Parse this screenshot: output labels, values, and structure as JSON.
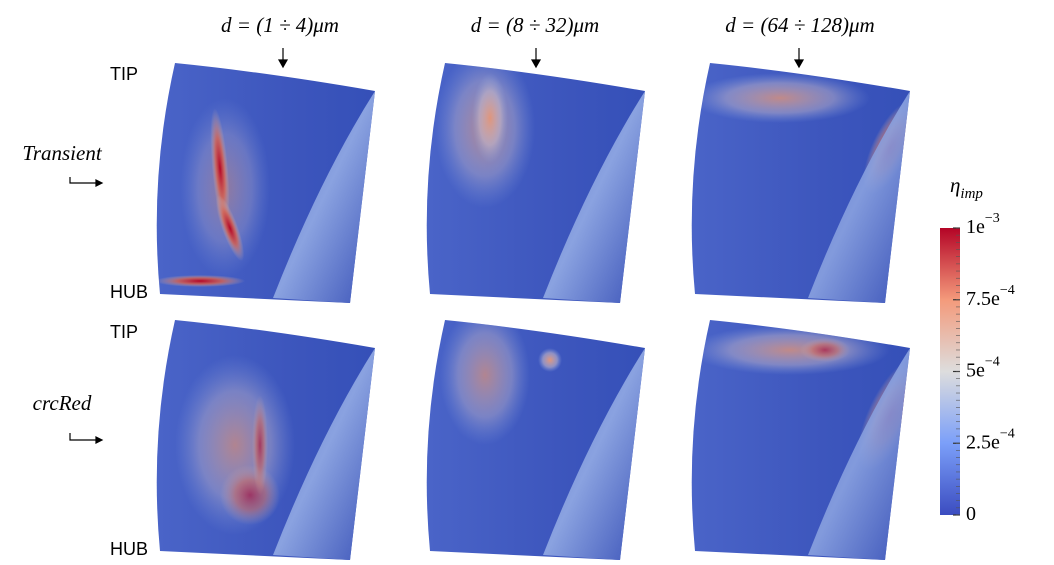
{
  "columns": [
    {
      "label": "d = (1 ÷ 4)μm"
    },
    {
      "label": "d = (8 ÷ 32)μm"
    },
    {
      "label": "d = (64 ÷ 128)μm"
    }
  ],
  "rows": [
    {
      "label": "Transient",
      "tip": "TIP",
      "hub": "HUB"
    },
    {
      "label": "crcRed",
      "tip": "TIP",
      "hub": "HUB"
    }
  ],
  "colorbar": {
    "title": "η",
    "title_sub": "imp",
    "lim": [
      0,
      0.001
    ],
    "ticks": [
      {
        "value": 0.001,
        "mantissa": "1e",
        "exponent": "−3"
      },
      {
        "value": 0.00075,
        "mantissa": "7.5e",
        "exponent": "−4"
      },
      {
        "value": 0.0005,
        "mantissa": "5e",
        "exponent": "−4"
      },
      {
        "value": 0.00025,
        "mantissa": "2.5e",
        "exponent": "−4"
      },
      {
        "value": 0,
        "mantissa": "0",
        "exponent": ""
      }
    ]
  }
}
